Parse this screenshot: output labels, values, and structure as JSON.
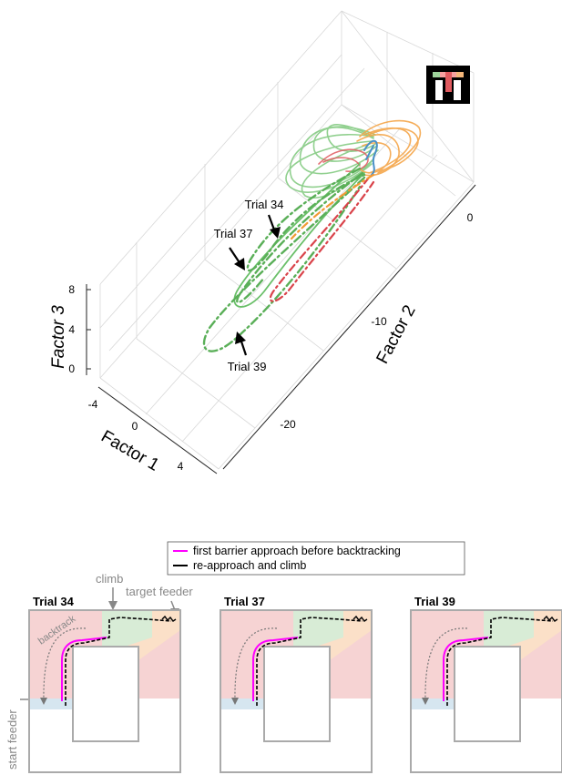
{
  "plot3d": {
    "axis_x": {
      "label": "Factor 1",
      "ticks": [
        "-4",
        "0",
        "4"
      ]
    },
    "axis_y": {
      "label": "Factor 2",
      "ticks": [
        "0",
        "-10",
        "-20"
      ]
    },
    "axis_z": {
      "label": "Factor 3",
      "ticks": [
        "8",
        "4",
        "0"
      ]
    },
    "annotations": [
      "Trial 34",
      "Trial 37",
      "Trial 39"
    ],
    "colors": {
      "green": "#6abf69",
      "orange": "#f5a040",
      "red": "#d9434a",
      "blue": "#4a90c8"
    }
  },
  "legend": {
    "items": [
      {
        "label": "first barrier approach before backtracking",
        "color": "#ff00ff"
      },
      {
        "label": "re-approach and climb",
        "color": "#000000"
      }
    ]
  },
  "maze_labels": {
    "climb": "climb",
    "target_feeder": "target feeder",
    "backtrack": "backtrack",
    "start_feeder": "start feeder"
  },
  "panels": [
    {
      "title": "Trial 34"
    },
    {
      "title": "Trial 37"
    },
    {
      "title": "Trial 39"
    }
  ],
  "zone_colors": {
    "start": "#d6e6f0",
    "red": "#f6d3d3",
    "green": "#d8ecd6",
    "orange": "#fbe0c8"
  }
}
